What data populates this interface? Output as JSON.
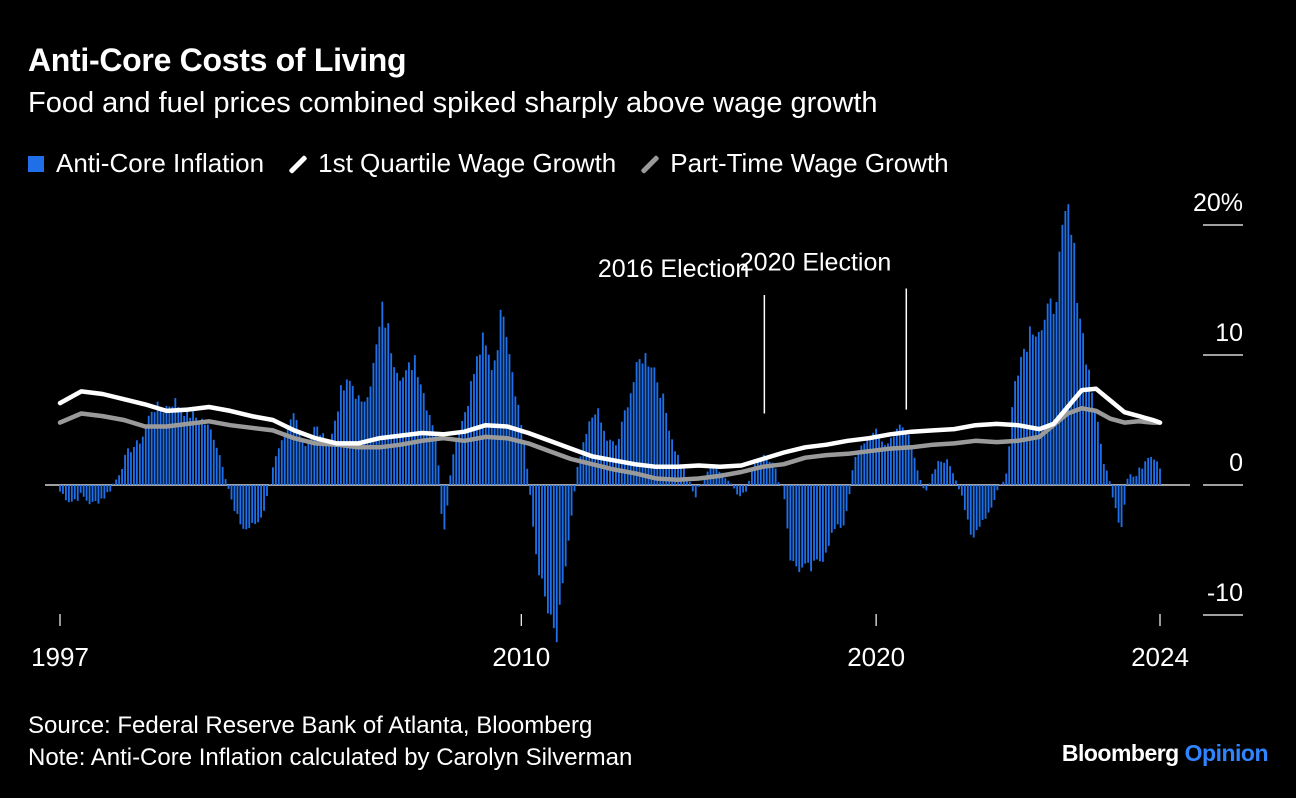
{
  "title": "Anti-Core Costs of Living",
  "subtitle": "Food and fuel prices combined spiked sharply above wage growth",
  "legend": [
    {
      "label": "Anti-Core Inflation",
      "color": "#1e6fe8",
      "kind": "bar"
    },
    {
      "label": "1st Quartile Wage Growth",
      "color": "#ffffff",
      "kind": "line"
    },
    {
      "label": "Part-Time Wage Growth",
      "color": "#9a9a9a",
      "kind": "line"
    }
  ],
  "footer": {
    "source": "Source: Federal Reserve Bank of Atlanta, Bloomberg",
    "note": "Note: Anti-Core Inflation calculated by Carolyn Silverman"
  },
  "brand": {
    "part1": "Bloomberg",
    "part2": "Opinion",
    "accent": "#2f85ff"
  },
  "chart_data": {
    "type": "bar",
    "ylim": [
      -10,
      20
    ],
    "y_ticks": [
      {
        "value": 20,
        "label": "20%"
      },
      {
        "value": 10,
        "label": "10"
      },
      {
        "value": 0,
        "label": "0"
      },
      {
        "value": -10,
        "label": "-10"
      }
    ],
    "x_range": [
      1997.0,
      2024.0
    ],
    "x_ticks": [
      {
        "value": 1997,
        "label": "1997"
      },
      {
        "value": 2010,
        "label": "2010"
      },
      {
        "value": 2020,
        "label": "2020"
      },
      {
        "value": 2024,
        "label": "2024"
      }
    ],
    "annotations": [
      {
        "label": "2016 Election",
        "x": 2016.85,
        "y_top": 16.0,
        "y_bottom": 5.5
      },
      {
        "label": "2020 Election",
        "x": 2020.85,
        "y_top": 16.5,
        "y_bottom": 5.8
      }
    ],
    "bar_series": {
      "name": "Anti-Core Inflation",
      "color": "#1e6fe8",
      "keypoints": [
        [
          1997.0,
          -0.5
        ],
        [
          1997.3,
          -1.3
        ],
        [
          1997.6,
          -0.8
        ],
        [
          1997.9,
          -1.5
        ],
        [
          1998.3,
          -0.8
        ],
        [
          1998.6,
          0.5
        ],
        [
          1998.9,
          2.5
        ],
        [
          1999.3,
          3.5
        ],
        [
          1999.6,
          6.0
        ],
        [
          1999.9,
          5.8
        ],
        [
          2000.2,
          6.5
        ],
        [
          2000.6,
          5.5
        ],
        [
          2001.0,
          5.0
        ],
        [
          2001.3,
          4.0
        ],
        [
          2001.6,
          1.5
        ],
        [
          2001.9,
          -2.0
        ],
        [
          2002.2,
          -3.5
        ],
        [
          2002.6,
          -2.8
        ],
        [
          2002.8,
          -1.5
        ],
        [
          2003.0,
          1.5
        ],
        [
          2003.3,
          3.5
        ],
        [
          2003.6,
          5.5
        ],
        [
          2003.9,
          3.0
        ],
        [
          2004.2,
          4.5
        ],
        [
          2004.6,
          3.0
        ],
        [
          2004.9,
          7.0
        ],
        [
          2005.2,
          8.0
        ],
        [
          2005.5,
          6.0
        ],
        [
          2005.8,
          8.5
        ],
        [
          2006.1,
          13.5
        ],
        [
          2006.4,
          10.0
        ],
        [
          2006.7,
          8.0
        ],
        [
          2007.0,
          10.0
        ],
        [
          2007.3,
          6.5
        ],
        [
          2007.6,
          4.0
        ],
        [
          2007.8,
          -4.0
        ],
        [
          2008.1,
          3.0
        ],
        [
          2008.4,
          5.5
        ],
        [
          2008.7,
          9.0
        ],
        [
          2008.9,
          11.0
        ],
        [
          2009.2,
          9.0
        ],
        [
          2009.5,
          14.0
        ],
        [
          2009.8,
          8.0
        ],
        [
          2010.1,
          3.0
        ],
        [
          2010.4,
          -5.0
        ],
        [
          2010.6,
          -8.0
        ],
        [
          2010.8,
          -10.5
        ],
        [
          2011.0,
          -12.0
        ],
        [
          2011.3,
          -5.0
        ],
        [
          2011.6,
          1.5
        ],
        [
          2011.9,
          4.5
        ],
        [
          2012.1,
          6.0
        ],
        [
          2012.4,
          3.5
        ],
        [
          2012.7,
          3.0
        ],
        [
          2013.0,
          6.5
        ],
        [
          2013.4,
          10.0
        ],
        [
          2013.7,
          9.5
        ],
        [
          2014.0,
          6.5
        ],
        [
          2014.3,
          3.0
        ],
        [
          2014.6,
          1.0
        ],
        [
          2014.9,
          -1.0
        ],
        [
          2015.2,
          1.0
        ],
        [
          2015.5,
          1.5
        ],
        [
          2015.8,
          0.5
        ],
        [
          2016.1,
          -0.5
        ],
        [
          2016.3,
          -0.8
        ],
        [
          2016.6,
          2.0
        ],
        [
          2016.9,
          2.5
        ],
        [
          2017.1,
          1.5
        ],
        [
          2017.4,
          -0.5
        ],
        [
          2017.6,
          -6.0
        ],
        [
          2017.9,
          -6.5
        ],
        [
          2018.2,
          -6.5
        ],
        [
          2018.5,
          -5.5
        ],
        [
          2018.8,
          -3.5
        ],
        [
          2019.1,
          -3.0
        ],
        [
          2019.4,
          2.0
        ],
        [
          2019.7,
          3.5
        ],
        [
          2020.0,
          4.0
        ],
        [
          2020.3,
          3.0
        ],
        [
          2020.6,
          4.5
        ],
        [
          2020.9,
          4.0
        ],
        [
          2021.1,
          2.0
        ],
        [
          2021.4,
          -0.8
        ],
        [
          2021.7,
          1.5
        ],
        [
          2021.9,
          2.0
        ],
        [
          2022.1,
          1.5
        ],
        [
          2022.4,
          -0.5
        ],
        [
          2022.7,
          -4.5
        ],
        [
          2022.9,
          -3.0
        ],
        [
          2023.2,
          -2.0
        ],
        [
          2023.4,
          -0.5
        ],
        [
          2023.7,
          1.0
        ],
        [
          2023.9,
          8.5
        ],
        [
          2024.1,
          10.0
        ],
        [
          2024.4,
          12.5
        ],
        [
          2024.7,
          12.0
        ],
        [
          2025.0,
          14.0
        ],
        [
          2025.2,
          17.5
        ],
        [
          2025.4,
          21.0
        ],
        [
          2025.6,
          17.0
        ],
        [
          2025.8,
          12.0
        ],
        [
          2026.1,
          7.0
        ],
        [
          2026.4,
          2.0
        ],
        [
          2026.7,
          -1.0
        ],
        [
          2026.9,
          -3.5
        ],
        [
          2027.1,
          1.0
        ],
        [
          2027.3,
          0.5
        ],
        [
          2027.5,
          1.5
        ],
        [
          2027.7,
          2.5
        ],
        [
          2027.9,
          2.0
        ],
        [
          2028.0,
          1.5
        ]
      ]
    },
    "x_display_max": 2028.0,
    "line_series": [
      {
        "name": "1st Quartile Wage Growth",
        "color": "#ffffff",
        "points": [
          [
            1997.0,
            6.3
          ],
          [
            1997.6,
            7.2
          ],
          [
            1998.2,
            7.0
          ],
          [
            1998.8,
            6.6
          ],
          [
            1999.4,
            6.2
          ],
          [
            2000.0,
            5.7
          ],
          [
            2000.6,
            5.8
          ],
          [
            2001.2,
            6.0
          ],
          [
            2001.8,
            5.7
          ],
          [
            2002.4,
            5.3
          ],
          [
            2003.0,
            5.0
          ],
          [
            2003.6,
            4.2
          ],
          [
            2004.2,
            3.6
          ],
          [
            2004.8,
            3.2
          ],
          [
            2005.4,
            3.2
          ],
          [
            2006.0,
            3.6
          ],
          [
            2006.6,
            3.8
          ],
          [
            2007.2,
            4.0
          ],
          [
            2007.8,
            3.9
          ],
          [
            2008.4,
            4.1
          ],
          [
            2009.0,
            4.6
          ],
          [
            2009.6,
            4.5
          ],
          [
            2010.2,
            4.0
          ],
          [
            2010.8,
            3.4
          ],
          [
            2011.4,
            2.8
          ],
          [
            2012.0,
            2.2
          ],
          [
            2012.6,
            1.9
          ],
          [
            2013.2,
            1.6
          ],
          [
            2013.8,
            1.4
          ],
          [
            2014.4,
            1.4
          ],
          [
            2015.0,
            1.5
          ],
          [
            2015.6,
            1.4
          ],
          [
            2016.2,
            1.5
          ],
          [
            2016.8,
            2.0
          ],
          [
            2017.4,
            2.5
          ],
          [
            2018.0,
            2.9
          ],
          [
            2018.6,
            3.1
          ],
          [
            2019.2,
            3.4
          ],
          [
            2019.8,
            3.6
          ],
          [
            2020.4,
            3.9
          ],
          [
            2021.0,
            4.1
          ],
          [
            2021.6,
            4.2
          ],
          [
            2022.2,
            4.3
          ],
          [
            2022.8,
            4.6
          ],
          [
            2023.4,
            4.7
          ],
          [
            2024.0,
            4.6
          ],
          [
            2024.6,
            4.3
          ],
          [
            2025.0,
            4.7
          ],
          [
            2025.4,
            6.0
          ],
          [
            2025.8,
            7.3
          ],
          [
            2026.2,
            7.4
          ],
          [
            2026.6,
            6.5
          ],
          [
            2027.0,
            5.6
          ],
          [
            2027.4,
            5.3
          ],
          [
            2027.8,
            5.0
          ],
          [
            2028.0,
            4.8
          ]
        ]
      },
      {
        "name": "Part-Time Wage Growth",
        "color": "#9a9a9a",
        "points": [
          [
            1997.0,
            4.8
          ],
          [
            1997.6,
            5.5
          ],
          [
            1998.2,
            5.3
          ],
          [
            1998.8,
            5.0
          ],
          [
            1999.4,
            4.5
          ],
          [
            2000.0,
            4.5
          ],
          [
            2000.6,
            4.7
          ],
          [
            2001.2,
            4.9
          ],
          [
            2001.8,
            4.6
          ],
          [
            2002.4,
            4.4
          ],
          [
            2003.0,
            4.2
          ],
          [
            2003.6,
            3.6
          ],
          [
            2004.2,
            3.2
          ],
          [
            2004.8,
            3.1
          ],
          [
            2005.4,
            2.9
          ],
          [
            2006.0,
            2.9
          ],
          [
            2006.6,
            3.1
          ],
          [
            2007.2,
            3.4
          ],
          [
            2007.8,
            3.6
          ],
          [
            2008.4,
            3.4
          ],
          [
            2009.0,
            3.7
          ],
          [
            2009.6,
            3.6
          ],
          [
            2010.2,
            3.2
          ],
          [
            2010.8,
            2.6
          ],
          [
            2011.4,
            2.0
          ],
          [
            2012.0,
            1.6
          ],
          [
            2012.6,
            1.2
          ],
          [
            2013.2,
            0.9
          ],
          [
            2013.8,
            0.5
          ],
          [
            2014.4,
            0.4
          ],
          [
            2015.0,
            0.5
          ],
          [
            2015.6,
            0.7
          ],
          [
            2016.2,
            1.0
          ],
          [
            2016.8,
            1.4
          ],
          [
            2017.4,
            1.6
          ],
          [
            2018.0,
            2.1
          ],
          [
            2018.6,
            2.3
          ],
          [
            2019.2,
            2.4
          ],
          [
            2019.8,
            2.6
          ],
          [
            2020.4,
            2.8
          ],
          [
            2021.0,
            2.9
          ],
          [
            2021.6,
            3.1
          ],
          [
            2022.2,
            3.2
          ],
          [
            2022.8,
            3.4
          ],
          [
            2023.4,
            3.3
          ],
          [
            2024.0,
            3.4
          ],
          [
            2024.6,
            3.7
          ],
          [
            2025.0,
            4.6
          ],
          [
            2025.4,
            5.5
          ],
          [
            2025.8,
            5.9
          ],
          [
            2026.2,
            5.7
          ],
          [
            2026.6,
            5.1
          ],
          [
            2027.0,
            4.8
          ],
          [
            2027.4,
            4.9
          ],
          [
            2027.8,
            4.8
          ],
          [
            2028.0,
            4.8
          ]
        ]
      }
    ]
  }
}
